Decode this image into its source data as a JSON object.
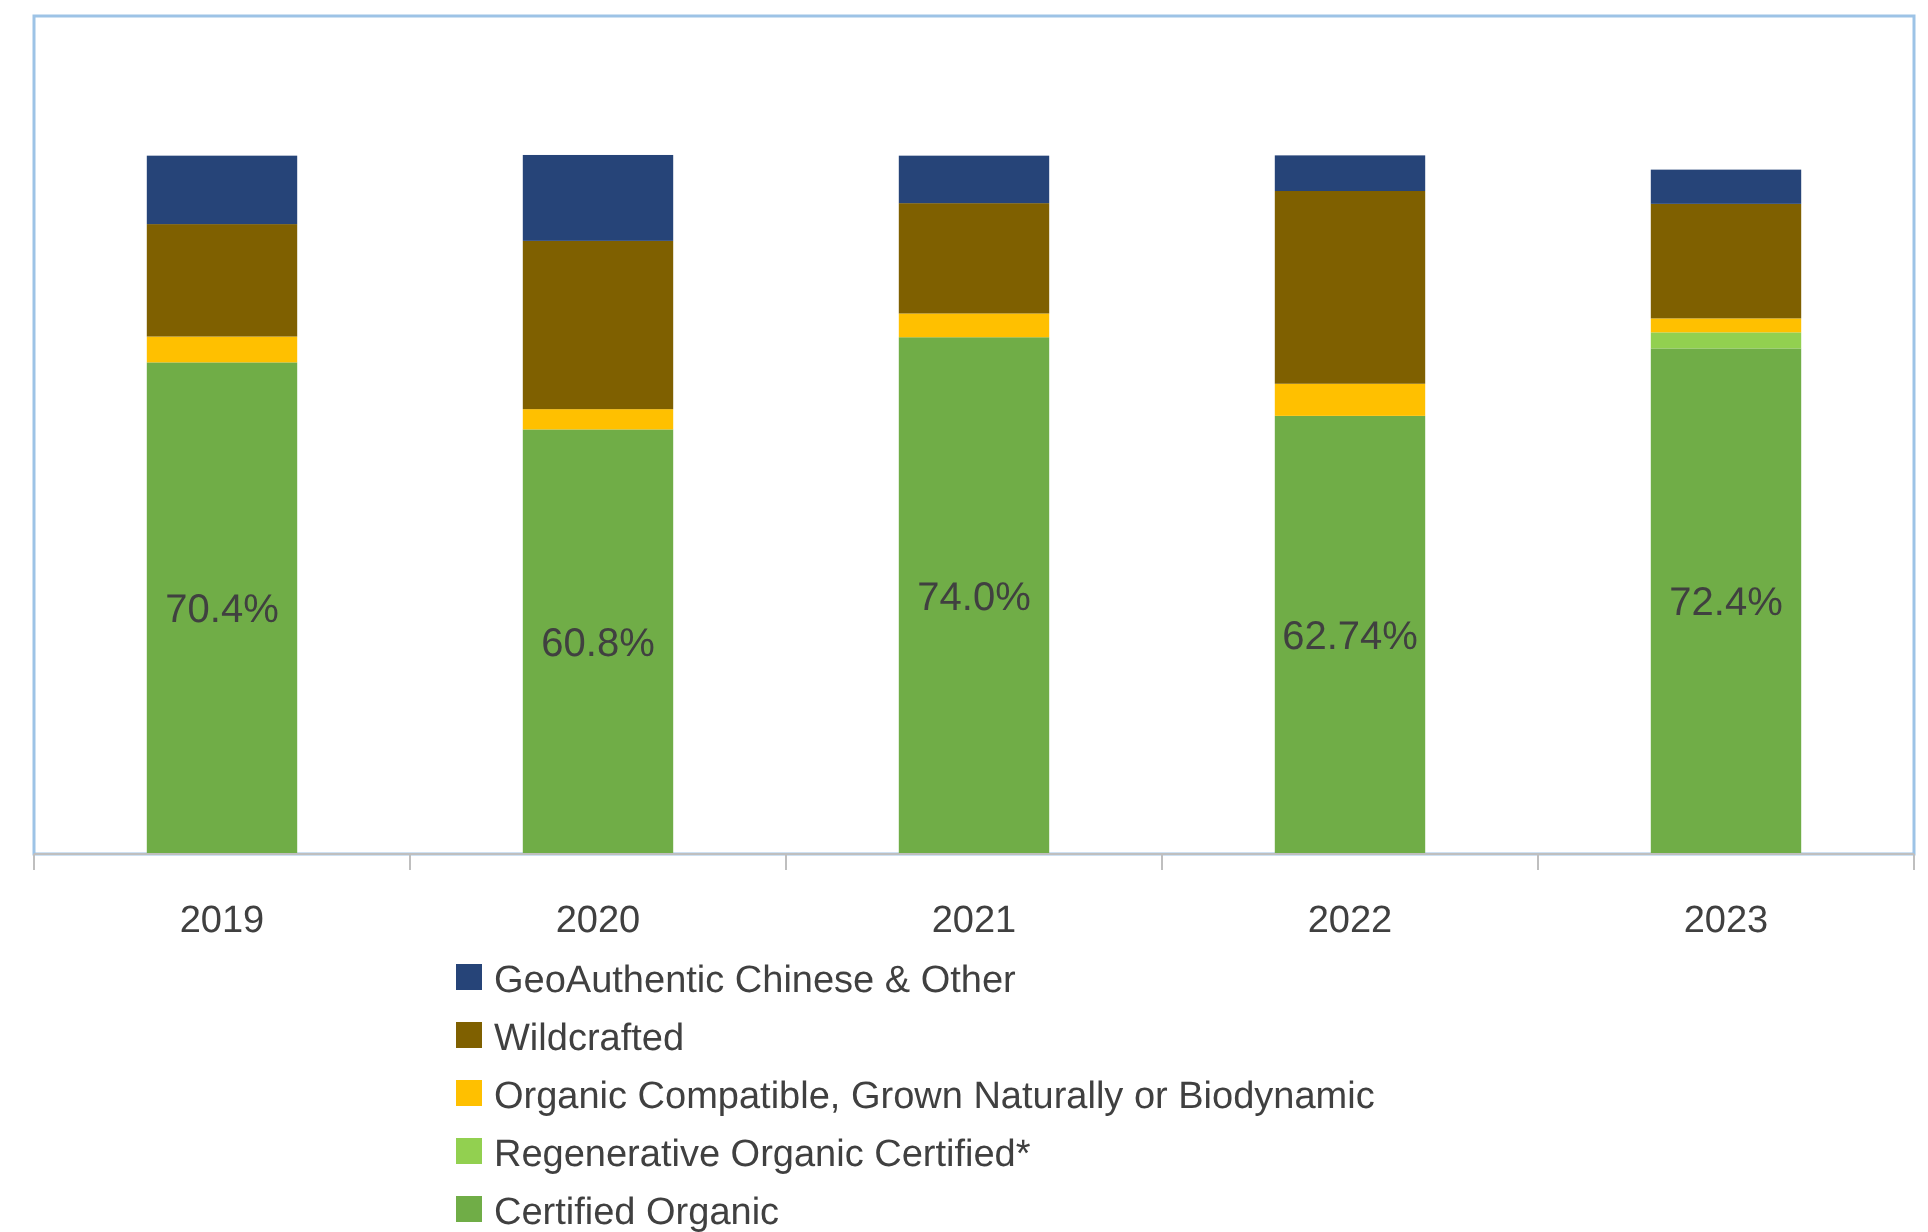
{
  "chart_data": {
    "type": "bar",
    "stacked": true,
    "categories": [
      "2019",
      "2020",
      "2021",
      "2022",
      "2023"
    ],
    "ylim": [
      0,
      120
    ],
    "tick_labels": "x",
    "grid": false,
    "legend": "bottom",
    "series": [
      {
        "name": "Certified Organic",
        "color": "#70ad47",
        "values": [
          70.4,
          60.8,
          74.0,
          62.74,
          72.4
        ],
        "value_labels": [
          "70.4%",
          "60.8%",
          "74.0%",
          "62.74%",
          "72.4%"
        ]
      },
      {
        "name": "Regenerative Organic Certified*",
        "color": "#92d050",
        "values": [
          null,
          null,
          null,
          null,
          2.3
        ]
      },
      {
        "name": "Organic Compatible, Grown Naturally or Biodynamic",
        "color": "#ffc000",
        "values": [
          3.7,
          2.9,
          3.4,
          4.6,
          2.0
        ]
      },
      {
        "name": "Wildcrafted",
        "color": "#7f6000",
        "values": [
          16.1,
          24.1,
          15.8,
          27.6,
          16.4
        ]
      },
      {
        "name": "GeoAuthentic Chinese & Other",
        "color": "#264478",
        "values": [
          9.8,
          12.3,
          6.8,
          5.1,
          4.9
        ]
      }
    ]
  }
}
